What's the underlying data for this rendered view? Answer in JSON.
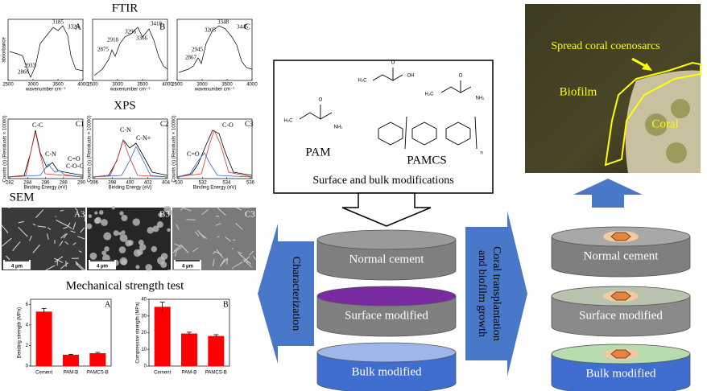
{
  "ftir": {
    "title": "FTIR",
    "y_label": "absorbance",
    "x_label": "wavenumber cm⁻¹",
    "xticks": [
      2500,
      3000,
      3500,
      4000
    ],
    "panels": [
      {
        "label": "A",
        "peaks": [
          "3185",
          "3326",
          "2933",
          "2866"
        ]
      },
      {
        "label": "B",
        "peaks": [
          "2875",
          "2918",
          "3296",
          "3366",
          "3418"
        ]
      },
      {
        "label": "C",
        "peaks": [
          "2945",
          "2867",
          "3205",
          "3348",
          "3445"
        ]
      }
    ]
  },
  "xps": {
    "title": "XPS",
    "x_label": "Binding Energy (eV)",
    "y_label": "Counts (s) (Residuals × 10000)",
    "panels": [
      {
        "label": "C1",
        "xticks": [
          282,
          284,
          286,
          288,
          290
        ],
        "peaks": [
          "C-C",
          "C-N",
          "C=O",
          "C-O-C"
        ]
      },
      {
        "label": "C2",
        "xticks": [
          396,
          398,
          400,
          402,
          404
        ],
        "peaks": [
          "C-N",
          "C-N+"
        ]
      },
      {
        "label": "C3",
        "xticks": [
          530,
          532,
          534,
          536
        ],
        "peaks": [
          "C-O",
          "C=O"
        ]
      }
    ]
  },
  "sem": {
    "title": "SEM",
    "scale": "4 μm",
    "labels": [
      "A3",
      "B3",
      "C3"
    ]
  },
  "mechanical": {
    "title": "Mechanical strength test",
    "charts": [
      {
        "type": "bar",
        "label": "A",
        "y_label": "Bending strength (MPa)",
        "categories": [
          "Cement",
          "PAM-B",
          "PAMCS-B"
        ],
        "values": [
          5.3,
          1.1,
          1.25
        ],
        "errors": [
          0.3,
          0.05,
          0.08
        ],
        "color": "#ff0000",
        "ylim": [
          0,
          6.5
        ],
        "yticks": [
          0,
          2,
          4,
          6
        ]
      },
      {
        "type": "bar",
        "label": "B",
        "y_label": "Compressive strength (MPa)",
        "categories": [
          "Cement",
          "PAM-B",
          "PAMCS-B"
        ],
        "values": [
          35.5,
          19.5,
          18
        ],
        "errors": [
          2.8,
          0.8,
          0.8
        ],
        "color": "#ff0000",
        "ylim": [
          0,
          40
        ],
        "yticks": [
          0,
          10,
          20,
          30,
          40
        ]
      }
    ]
  },
  "center": {
    "monomers": [
      "PAM",
      "PAMCS"
    ],
    "chem_labels": [
      "H₂C",
      "O",
      "NH₂",
      "H₂C",
      "OH",
      "O",
      "H₂C",
      "NH₂",
      "O",
      "n"
    ],
    "caption": "Surface and bulk modifications",
    "left_arrow": "Characterization",
    "right_arrow": [
      "Coral transplantation",
      "and biofilm growth"
    ],
    "samples": [
      "Normal cement",
      "Surface modified",
      "Bulk modified"
    ]
  },
  "photo": {
    "labels": [
      "Spread coral coenosarcs",
      "Biofilm",
      "Coral"
    ]
  }
}
